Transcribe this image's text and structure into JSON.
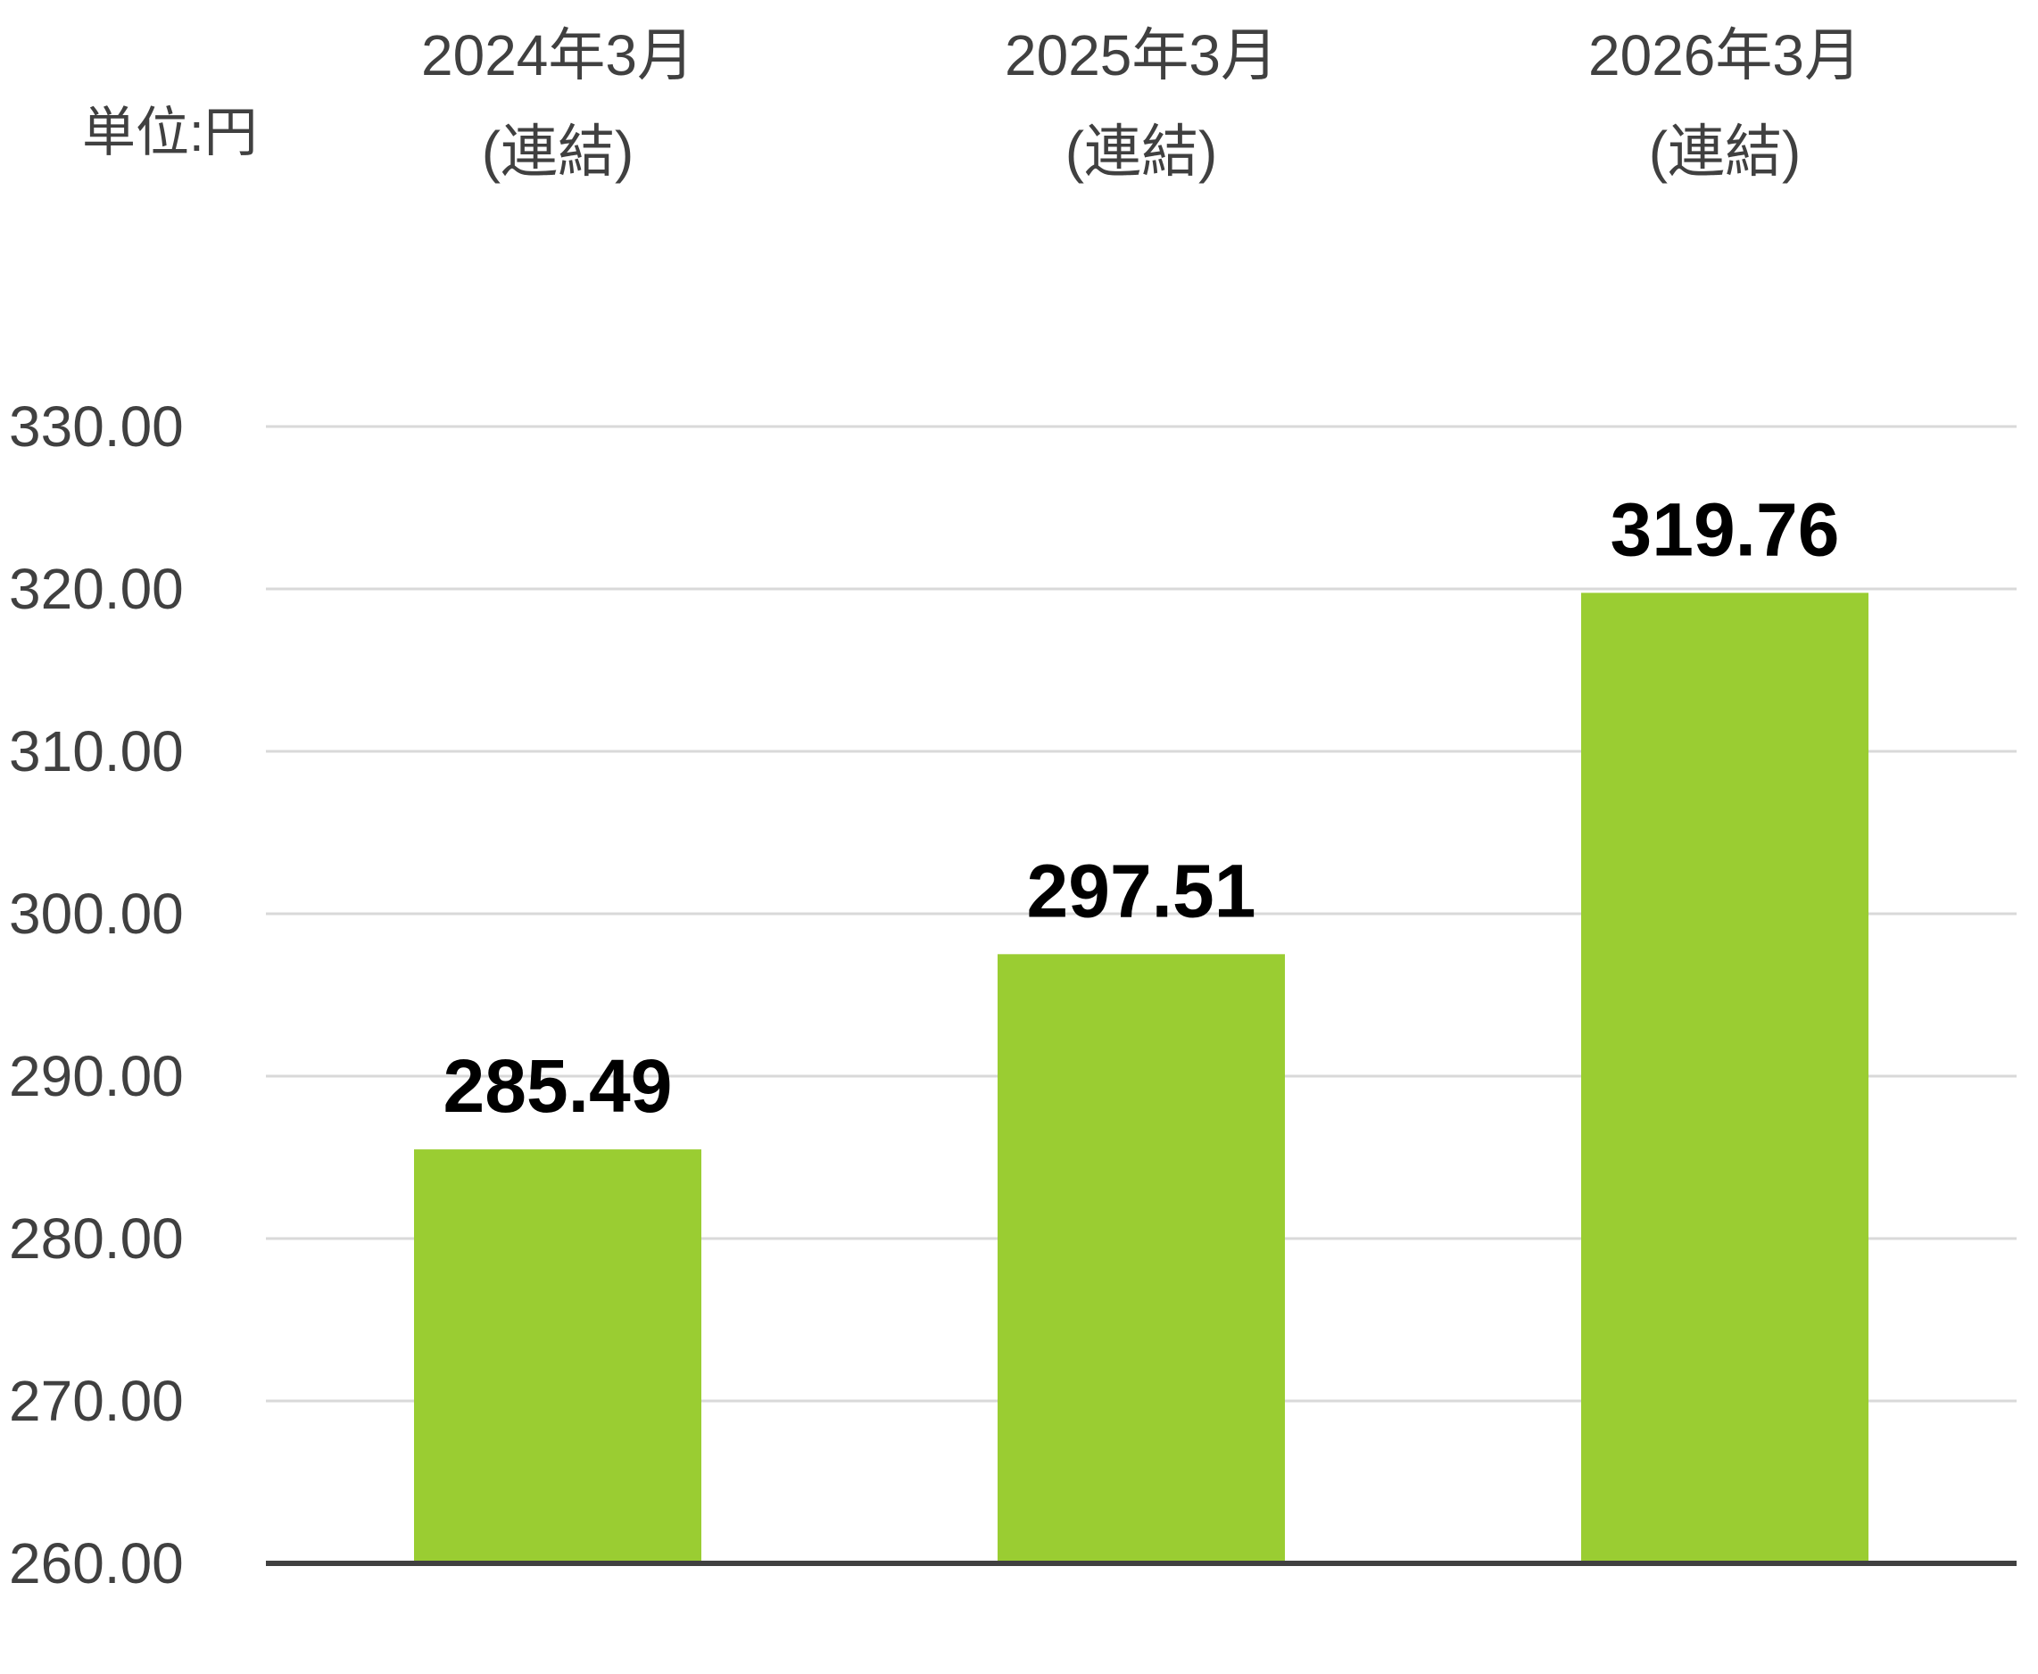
{
  "chart_data": {
    "type": "bar",
    "unit_label": "単位:円",
    "categories": [
      {
        "line1": "2024年3月",
        "line2": "(連結)"
      },
      {
        "line1": "2025年3月",
        "line2": "(連結)"
      },
      {
        "line1": "2026年3月",
        "line2": "(連結)"
      }
    ],
    "values": [
      285.49,
      297.51,
      319.76
    ],
    "value_labels": [
      "285.49",
      "297.51",
      "319.76"
    ],
    "ylim": [
      260,
      330
    ],
    "yticks": [
      "260.00",
      "270.00",
      "280.00",
      "290.00",
      "300.00",
      "310.00",
      "320.00",
      "330.00"
    ],
    "ytick_values": [
      260,
      270,
      280,
      290,
      300,
      310,
      320,
      330
    ],
    "grid": true,
    "colors": {
      "bar": "#9ACD32",
      "grid": "#D9D9D9",
      "axis": "#404040",
      "tick_text": "#404040",
      "value_text": "#000000"
    }
  }
}
